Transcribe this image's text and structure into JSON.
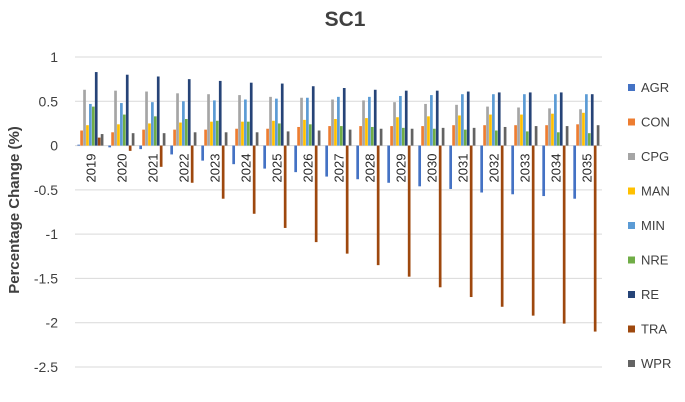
{
  "chart_data": {
    "type": "bar",
    "title": "SC1",
    "xlabel": "",
    "ylabel": "Percentage Change (%)",
    "ylim": [
      -2.5,
      1
    ],
    "yticks": [
      1,
      0.5,
      0,
      -0.5,
      -1,
      -1.5,
      -2,
      -2.5
    ],
    "grid": true,
    "legend_position": "right",
    "categories": [
      "2019",
      "2020",
      "2021",
      "2022",
      "2023",
      "2024",
      "2025",
      "2026",
      "2027",
      "2028",
      "2029",
      "2030",
      "2031",
      "2032",
      "2033",
      "2034",
      "2035"
    ],
    "series": [
      {
        "name": "AGR",
        "color": "#4472c4",
        "values": [
          0.01,
          -0.02,
          -0.04,
          -0.1,
          -0.17,
          -0.21,
          -0.26,
          -0.3,
          -0.35,
          -0.38,
          -0.42,
          -0.46,
          -0.49,
          -0.53,
          -0.55,
          -0.57,
          -0.6
        ]
      },
      {
        "name": "CON",
        "color": "#ed7d31",
        "values": [
          0.17,
          0.15,
          0.18,
          0.18,
          0.18,
          0.19,
          0.19,
          0.21,
          0.22,
          0.22,
          0.22,
          0.22,
          0.23,
          0.23,
          0.23,
          0.23,
          0.24
        ]
      },
      {
        "name": "CPG",
        "color": "#a5a5a5",
        "values": [
          0.63,
          0.62,
          0.61,
          0.59,
          0.58,
          0.57,
          0.55,
          0.54,
          0.52,
          0.51,
          0.49,
          0.47,
          0.46,
          0.44,
          0.43,
          0.42,
          0.41
        ]
      },
      {
        "name": "MAN",
        "color": "#ffc000",
        "values": [
          0.23,
          0.24,
          0.25,
          0.26,
          0.27,
          0.27,
          0.28,
          0.29,
          0.3,
          0.31,
          0.32,
          0.33,
          0.34,
          0.35,
          0.35,
          0.36,
          0.37
        ]
      },
      {
        "name": "MIN",
        "color": "#5b9bd5",
        "values": [
          0.47,
          0.48,
          0.49,
          0.5,
          0.51,
          0.52,
          0.53,
          0.54,
          0.55,
          0.55,
          0.56,
          0.57,
          0.58,
          0.58,
          0.58,
          0.58,
          0.58
        ]
      },
      {
        "name": "NRE",
        "color": "#70ad47",
        "values": [
          0.44,
          0.35,
          0.33,
          0.3,
          0.28,
          0.27,
          0.25,
          0.24,
          0.22,
          0.21,
          0.2,
          0.19,
          0.18,
          0.17,
          0.16,
          0.15,
          0.14
        ]
      },
      {
        "name": "RE",
        "color": "#264478",
        "values": [
          0.83,
          0.8,
          0.78,
          0.75,
          0.73,
          0.71,
          0.7,
          0.67,
          0.65,
          0.63,
          0.62,
          0.62,
          0.61,
          0.6,
          0.6,
          0.6,
          0.58
        ]
      },
      {
        "name": "TRA",
        "color": "#9e480e",
        "values": [
          0.09,
          -0.06,
          -0.24,
          -0.42,
          -0.6,
          -0.77,
          -0.93,
          -1.09,
          -1.22,
          -1.35,
          -1.48,
          -1.6,
          -1.71,
          -1.82,
          -1.92,
          -2.01,
          -2.1
        ]
      },
      {
        "name": "WPR",
        "color": "#636363",
        "values": [
          0.13,
          0.14,
          0.14,
          0.15,
          0.15,
          0.15,
          0.16,
          0.17,
          0.18,
          0.19,
          0.19,
          0.2,
          0.2,
          0.21,
          0.22,
          0.22,
          0.23
        ]
      }
    ]
  }
}
